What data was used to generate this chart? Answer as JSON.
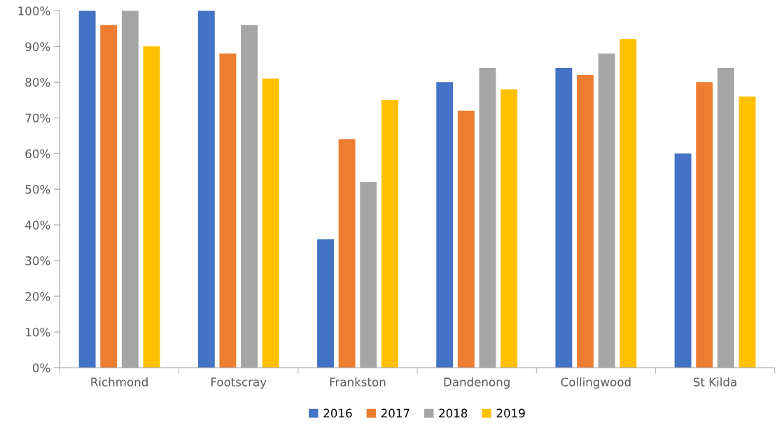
{
  "chart_data": {
    "type": "bar",
    "categories": [
      "Richmond",
      "Footscray",
      "Frankston",
      "Dandenong",
      "Collingwood",
      "St Kilda"
    ],
    "series": [
      {
        "name": "2016",
        "color": "#4472c4",
        "values": [
          100,
          100,
          36,
          80,
          84,
          60
        ]
      },
      {
        "name": "2017",
        "color": "#ed7d31",
        "values": [
          96,
          88,
          64,
          72,
          82,
          80
        ]
      },
      {
        "name": "2018",
        "color": "#a5a5a5",
        "values": [
          100,
          96,
          52,
          84,
          88,
          84
        ]
      },
      {
        "name": "2019",
        "color": "#ffc000",
        "values": [
          90,
          81,
          75,
          78,
          92,
          76
        ]
      }
    ],
    "ylim": [
      0,
      100
    ],
    "yticks": [
      {
        "value": 0,
        "label": "0%"
      },
      {
        "value": 10,
        "label": "10%"
      },
      {
        "value": 20,
        "label": "20%"
      },
      {
        "value": 30,
        "label": "30%"
      },
      {
        "value": 40,
        "label": "40%"
      },
      {
        "value": 50,
        "label": "50%"
      },
      {
        "value": 60,
        "label": "60%"
      },
      {
        "value": 70,
        "label": "70%"
      },
      {
        "value": 80,
        "label": "80%"
      },
      {
        "value": 90,
        "label": "90%"
      },
      {
        "value": 100,
        "label": "100%"
      }
    ],
    "grid": false,
    "legend": "bottom"
  }
}
